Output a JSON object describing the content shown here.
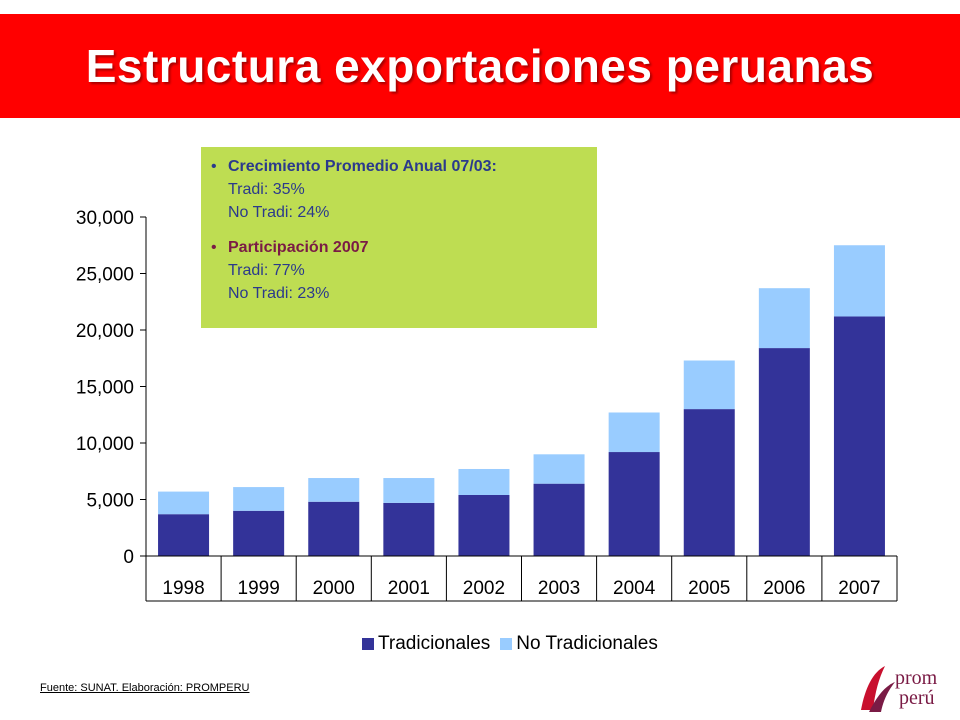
{
  "title": "Estructura exportaciones peruanas",
  "callout": {
    "growth_head": "Crecimiento Promedio Anual 07/03:",
    "growth_trad": "Tradi: 35%",
    "growth_notrad": "No Tradi: 24%",
    "share_head": "Participación 2007",
    "share_trad": "Tradi: 77%",
    "share_notrad": "No Tradi: 23%"
  },
  "source": "Fuente: SUNAT.  Elaboración: PROMPERU",
  "logo": {
    "line1": "prom",
    "line2": "perú"
  },
  "colors": {
    "banner": "#ff0000",
    "callout": "#bedd52",
    "tradicionales": "#333399",
    "no_tradicionales": "#99ccff"
  },
  "chart_data": {
    "type": "bar",
    "stacked": true,
    "categories": [
      "1998",
      "1999",
      "2000",
      "2001",
      "2002",
      "2003",
      "2004",
      "2005",
      "2006",
      "2007"
    ],
    "series": [
      {
        "name": "Tradicionales",
        "values": [
          3700,
          4000,
          4800,
          4700,
          5400,
          6400,
          9200,
          13000,
          18400,
          21200
        ]
      },
      {
        "name": "No Tradicionales",
        "values": [
          2000,
          2100,
          2100,
          2200,
          2300,
          2600,
          3500,
          4300,
          5300,
          6300
        ]
      }
    ],
    "ylim": [
      0,
      30000
    ],
    "yticks": [
      0,
      5000,
      10000,
      15000,
      20000,
      25000,
      30000
    ],
    "ytick_labels": [
      "0",
      "5,000",
      "10,000",
      "15,000",
      "20,000",
      "25,000",
      "30,000"
    ],
    "grid": false,
    "legend_position": "bottom"
  }
}
